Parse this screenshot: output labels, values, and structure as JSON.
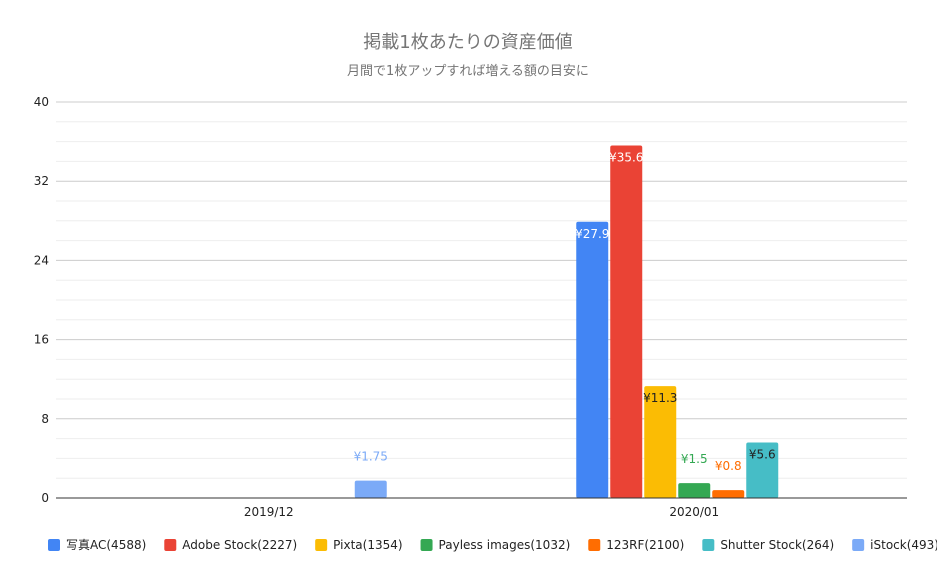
{
  "chart_data": {
    "type": "bar",
    "title": "掲載1枚あたりの資産価値",
    "subtitle": "月間で1枚アップすれば増える額の目安に",
    "categories": [
      "2019/12",
      "2020/01"
    ],
    "ylim": [
      0,
      40
    ],
    "yticks": [
      0,
      8,
      16,
      24,
      32,
      40
    ],
    "grid": true,
    "legend": "bottom",
    "series": [
      {
        "name": "写真AC(4588)",
        "color": "#4285f4",
        "values": [
          null,
          27.9
        ],
        "labels": [
          null,
          "¥27.9"
        ],
        "label_color": "#ffffff"
      },
      {
        "name": "Adobe Stock(2227)",
        "color": "#ea4335",
        "values": [
          null,
          35.6
        ],
        "labels": [
          null,
          "¥35.6"
        ],
        "label_color": "#ffffff"
      },
      {
        "name": "Pixta(1354)",
        "color": "#fbbc04",
        "values": [
          null,
          11.3
        ],
        "labels": [
          null,
          "¥11.3"
        ],
        "label_color": "#222222"
      },
      {
        "name": "Payless images(1032)",
        "color": "#34a853",
        "values": [
          null,
          1.5
        ],
        "labels": [
          null,
          "¥1.5"
        ],
        "label_color": "#34a853"
      },
      {
        "name": "123RF(2100)",
        "color": "#ff6d01",
        "values": [
          null,
          0.8
        ],
        "labels": [
          null,
          "¥0.8"
        ],
        "label_color": "#ff6d01"
      },
      {
        "name": "Shutter Stock(264)",
        "color": "#46bdc6",
        "values": [
          null,
          5.6
        ],
        "labels": [
          null,
          "¥5.6"
        ],
        "label_color": "#222222"
      },
      {
        "name": "iStock(493)",
        "color": "#7baaf7",
        "values": [
          1.75,
          null
        ],
        "labels": [
          "¥1.75",
          null
        ],
        "label_color": "#7baaf7"
      }
    ]
  }
}
